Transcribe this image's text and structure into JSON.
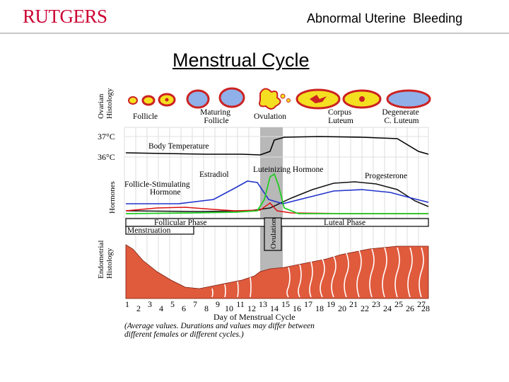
{
  "header": {
    "logo_text": "RUTGERS",
    "title": "Abnormal Uterine  Bleeding"
  },
  "slide": {
    "title": "Menstrual Cycle"
  },
  "diagram": {
    "ovarian_histology_label": [
      "Ovarian",
      "Histology"
    ],
    "ovarian_stages": [
      {
        "lines": [
          "Follicle"
        ]
      },
      {
        "lines": [
          "Maturing",
          "Follicle"
        ]
      },
      {
        "lines": [
          "Ovulation"
        ]
      },
      {
        "lines": [
          "Corpus",
          "Luteum"
        ]
      },
      {
        "lines": [
          "Degenerate",
          "C. Luteum"
        ]
      }
    ],
    "temp_ticks": [
      "37°C",
      "36°C"
    ],
    "body_temperature_label": "Body Temperature",
    "hormones_label": "Hormones",
    "hormone_labels": {
      "estradiol": "Estradiol",
      "lh": "Luteinizing Hormone",
      "progesterone": "Progesterone",
      "fsh": [
        "Follicle-Stimulating",
        "Hormone"
      ]
    },
    "phases": {
      "follicular": "Follicular Phase",
      "luteal": "Luteal Phase",
      "menstruation": "Menstruation",
      "ovulation": "Ovulation"
    },
    "endometrial_histology_label": [
      "Endometrial",
      "Histology"
    ],
    "days_odd": [
      "1",
      "3",
      "5",
      "7",
      "9",
      "11",
      "13",
      "15",
      "17",
      "19",
      "21",
      "23",
      "25",
      "27"
    ],
    "days_even": [
      "2",
      "4",
      "6",
      "8",
      "10",
      "12",
      "14",
      "16",
      "18",
      "20",
      "22",
      "24",
      "26",
      "28"
    ],
    "x_axis_label": "Day of Menstrual Cycle",
    "note": [
      "(Average values. Durations and values may differ between",
      "different females or different cycles.)"
    ],
    "colors": {
      "temperature": "#000000",
      "estradiol": "#2233cc",
      "lh": "#22cc22",
      "fsh": "#dd1111",
      "progesterone": "#111111",
      "endometrium": "#e05a3c",
      "ovulation_band": "#b8b8b8",
      "follicle_fill": "#f4e020",
      "follicle_ring": "#cc2222",
      "follicle_core": "#8fb0e8"
    }
  }
}
